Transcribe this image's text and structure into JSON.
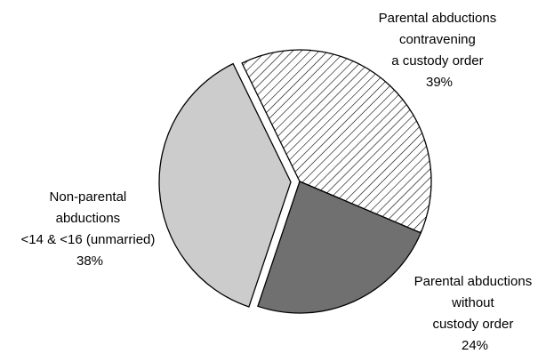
{
  "chart_data": {
    "type": "pie",
    "exploded_slice": "Non-parental abductions <14 & <16 (unmarried)",
    "slices": [
      {
        "name": "Parental abductions contravening a custody order",
        "label_lines": [
          "Parental abductions",
          "contravening",
          "a custody order",
          "39%"
        ],
        "value": 39,
        "fill": "hatched"
      },
      {
        "name": "Parental abductions without custody order",
        "label_lines": [
          "Parental abductions",
          "without",
          "custody order",
          "24%"
        ],
        "value": 24,
        "fill": "#707070"
      },
      {
        "name": "Non-parental abductions <14 & <16 (unmarried)",
        "label_lines": [
          "Non-parental",
          "abductions",
          "<14 & <16 (unmarried)",
          "38%"
        ],
        "value": 38,
        "fill": "#cccccc"
      }
    ],
    "legend": "none",
    "title": ""
  }
}
